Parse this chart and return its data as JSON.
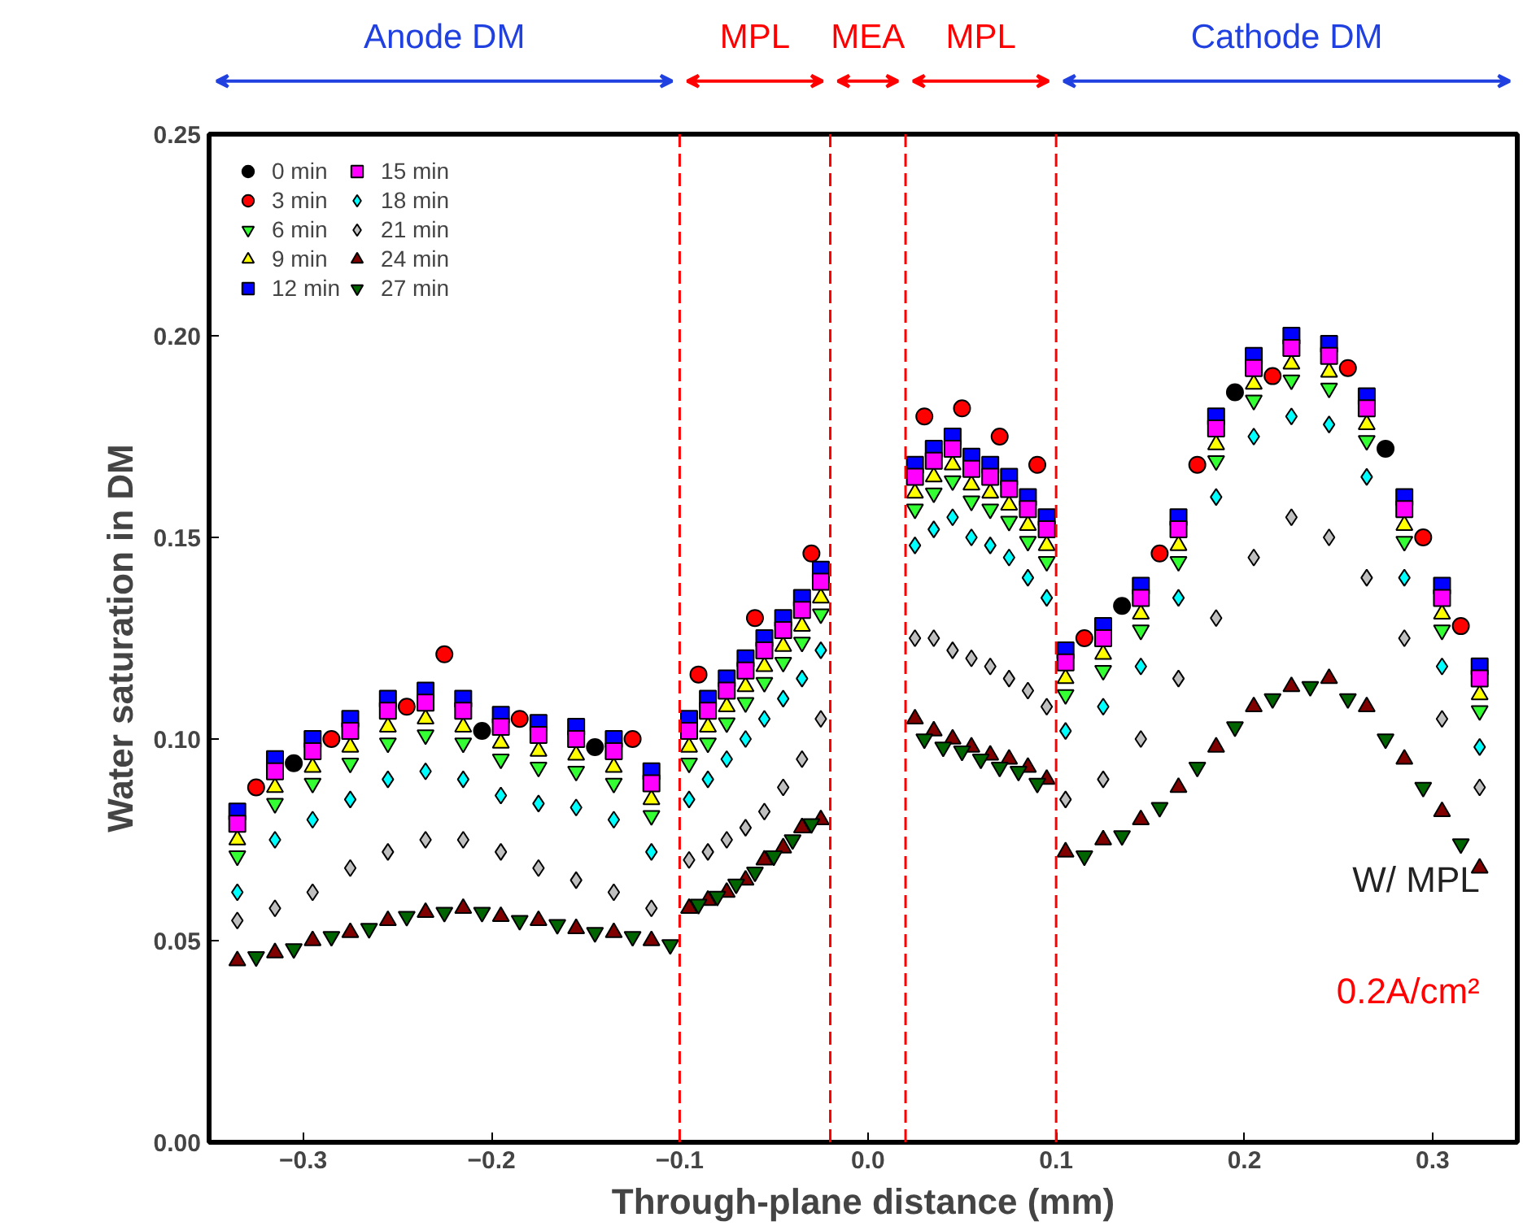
{
  "chart_data": {
    "type": "scatter",
    "xlabel": "Through-plane distance (mm)",
    "ylabel": "Water saturation in DM",
    "xlim": [
      -0.35,
      0.345
    ],
    "ylim": [
      0,
      0.25
    ],
    "xticks": [
      -0.3,
      -0.2,
      -0.1,
      {
        "value": 0,
        "label": "0.0"
      },
      0.1,
      0.2,
      0.3
    ],
    "yticks": [
      {
        "value": 0,
        "label": "0.00"
      },
      0.05,
      {
        "value": 0.1,
        "label": "0.10"
      },
      0.15,
      {
        "value": 0.2,
        "label": "0.20"
      },
      0.25
    ],
    "grid": false,
    "legend": "top left",
    "x": [
      -0.335,
      -0.315,
      -0.295,
      -0.275,
      -0.255,
      -0.235,
      -0.215,
      -0.195,
      -0.175,
      -0.155,
      -0.135,
      -0.115,
      -0.095,
      -0.085,
      -0.075,
      -0.065,
      -0.055,
      -0.045,
      -0.035,
      -0.025,
      0.025,
      0.035,
      0.045,
      0.055,
      0.065,
      0.075,
      0.085,
      0.095,
      0.105,
      0.125,
      0.145,
      0.165,
      0.185,
      0.205,
      0.225,
      0.245,
      0.265,
      0.285,
      0.305,
      0.325
    ],
    "ref_lines": [
      {
        "axis": "x",
        "value": -0.1,
        "color": "#ff0000",
        "line_style": "dashed"
      },
      {
        "axis": "x",
        "value": -0.02,
        "color": "#ff0000",
        "line_style": "dashed"
      },
      {
        "axis": "x",
        "value": 0.02,
        "color": "#ff0000",
        "line_style": "dashed"
      },
      {
        "axis": "x",
        "value": 0.1,
        "color": "#ff0000",
        "line_style": "dashed"
      }
    ],
    "annotations": [
      "Anode DM",
      "MPL",
      "MEA",
      "MPL",
      "Cathode DM",
      "W/ MPL",
      "0.2A/cm²"
    ],
    "series": [
      {
        "name": "0 min",
        "color": "#000000",
        "marker": "circle",
        "x": [
          -0.305,
          -0.205,
          -0.145,
          0.135,
          0.195,
          0.275
        ],
        "values": [
          0.094,
          0.102,
          0.098,
          0.133,
          0.186,
          0.172
        ]
      },
      {
        "name": "3 min",
        "color": "#ff0000",
        "marker": "circle",
        "x": [
          -0.325,
          -0.285,
          -0.245,
          -0.225,
          -0.185,
          -0.125,
          -0.09,
          -0.06,
          -0.03,
          0.03,
          0.05,
          0.07,
          0.09,
          0.115,
          0.155,
          0.175,
          0.215,
          0.255,
          0.295,
          0.315
        ],
        "values": [
          0.088,
          0.1,
          0.108,
          0.121,
          0.105,
          0.1,
          0.116,
          0.13,
          0.146,
          0.18,
          0.182,
          0.175,
          0.168,
          0.125,
          0.146,
          0.168,
          0.19,
          0.192,
          0.15,
          0.128
        ]
      },
      {
        "name": "6 min",
        "color": "#33ff33",
        "values": [
          0.071,
          0.084,
          0.089,
          0.094,
          0.099,
          0.101,
          0.099,
          0.095,
          0.093,
          0.092,
          0.089,
          0.081,
          0.094,
          0.099,
          0.104,
          0.109,
          0.114,
          0.119,
          0.124,
          0.131,
          0.157,
          0.161,
          0.164,
          0.159,
          0.157,
          0.154,
          0.149,
          0.144,
          0.111,
          0.117,
          0.127,
          0.144,
          0.169,
          0.184,
          0.189,
          0.187,
          0.174,
          0.149,
          0.127,
          0.107
        ]
      },
      {
        "name": "9 min",
        "color": "#ffff00",
        "marker": "triangle",
        "values": [
          0.075,
          0.088,
          0.093,
          0.098,
          0.103,
          0.105,
          0.103,
          0.099,
          0.097,
          0.096,
          0.093,
          0.085,
          0.098,
          0.103,
          0.108,
          0.113,
          0.118,
          0.123,
          0.128,
          0.135,
          0.161,
          0.165,
          0.168,
          0.163,
          0.161,
          0.158,
          0.153,
          0.148,
          0.115,
          0.121,
          0.131,
          0.148,
          0.173,
          0.188,
          0.193,
          0.191,
          0.178,
          0.153,
          0.131,
          0.111
        ]
      },
      {
        "name": "12 min",
        "color": "#0000ff",
        "marker": "square",
        "values": [
          0.082,
          0.095,
          0.1,
          0.105,
          0.11,
          0.112,
          0.11,
          0.106,
          0.104,
          0.103,
          0.1,
          0.092,
          0.105,
          0.11,
          0.115,
          0.12,
          0.125,
          0.13,
          0.135,
          0.142,
          0.168,
          0.172,
          0.175,
          0.17,
          0.168,
          0.165,
          0.16,
          0.155,
          0.122,
          0.128,
          0.138,
          0.155,
          0.18,
          0.195,
          0.2,
          0.198,
          0.185,
          0.16,
          0.138,
          0.118
        ]
      },
      {
        "name": "15 min",
        "color": "#ff00ff",
        "marker": "square",
        "values": [
          0.079,
          0.092,
          0.097,
          0.102,
          0.107,
          0.109,
          0.107,
          0.103,
          0.101,
          0.1,
          0.097,
          0.089,
          0.102,
          0.107,
          0.112,
          0.117,
          0.122,
          0.127,
          0.132,
          0.139,
          0.165,
          0.169,
          0.172,
          0.167,
          0.165,
          0.162,
          0.157,
          0.152,
          0.119,
          0.125,
          0.135,
          0.152,
          0.177,
          0.192,
          0.197,
          0.195,
          0.182,
          0.157,
          0.135,
          0.115
        ]
      },
      {
        "name": "18 min",
        "color": "#00ffff",
        "marker": "diamond",
        "values": [
          0.062,
          0.075,
          0.08,
          0.085,
          0.09,
          0.092,
          0.09,
          0.086,
          0.084,
          0.083,
          0.08,
          0.072,
          0.085,
          0.09,
          0.095,
          0.1,
          0.105,
          0.11,
          0.115,
          0.122,
          0.148,
          0.152,
          0.155,
          0.15,
          0.148,
          0.145,
          0.14,
          0.135,
          0.102,
          0.108,
          0.118,
          0.135,
          0.16,
          0.175,
          0.18,
          0.178,
          0.165,
          0.14,
          0.118,
          0.098
        ]
      },
      {
        "name": "21 min",
        "color": "#c0c0c0",
        "marker": "diamond",
        "values": [
          0.055,
          0.058,
          0.062,
          0.068,
          0.072,
          0.075,
          0.075,
          0.072,
          0.068,
          0.065,
          0.062,
          0.058,
          0.07,
          0.072,
          0.075,
          0.078,
          0.082,
          0.088,
          0.095,
          0.105,
          0.125,
          0.125,
          0.122,
          0.12,
          0.118,
          0.115,
          0.112,
          0.108,
          0.085,
          0.09,
          0.1,
          0.115,
          0.13,
          0.145,
          0.155,
          0.15,
          0.14,
          0.125,
          0.105,
          0.088
        ]
      },
      {
        "name": "24 min",
        "color": "#800000",
        "marker": "triangle",
        "values": [
          0.045,
          0.047,
          0.05,
          0.052,
          0.055,
          0.057,
          0.058,
          0.056,
          0.055,
          0.053,
          0.052,
          0.05,
          0.058,
          0.06,
          0.062,
          0.065,
          0.07,
          0.073,
          0.078,
          0.08,
          0.105,
          0.102,
          0.1,
          0.098,
          0.096,
          0.095,
          0.093,
          0.09,
          0.072,
          0.075,
          0.08,
          0.088,
          0.098,
          0.108,
          0.113,
          0.115,
          0.108,
          0.095,
          0.082,
          0.068
        ]
      },
      {
        "name": "27 min",
        "color": "#006400",
        "x": [
          -0.325,
          -0.305,
          -0.285,
          -0.265,
          -0.245,
          -0.225,
          -0.205,
          -0.185,
          -0.165,
          -0.145,
          -0.125,
          -0.105,
          -0.09,
          -0.08,
          -0.07,
          -0.06,
          -0.05,
          -0.04,
          -0.03,
          0.03,
          0.04,
          0.05,
          0.06,
          0.07,
          0.08,
          0.09,
          0.115,
          0.135,
          0.155,
          0.175,
          0.195,
          0.215,
          0.235,
          0.255,
          0.275,
          0.295,
          0.315
        ],
        "values": [
          0.046,
          0.048,
          0.051,
          0.053,
          0.056,
          0.057,
          0.057,
          0.055,
          0.054,
          0.052,
          0.051,
          0.049,
          0.059,
          0.061,
          0.064,
          0.067,
          0.071,
          0.075,
          0.079,
          0.1,
          0.098,
          0.097,
          0.095,
          0.093,
          0.092,
          0.089,
          0.071,
          0.076,
          0.083,
          0.093,
          0.103,
          0.11,
          0.113,
          0.11,
          0.1,
          0.088,
          0.074
        ]
      }
    ]
  }
}
